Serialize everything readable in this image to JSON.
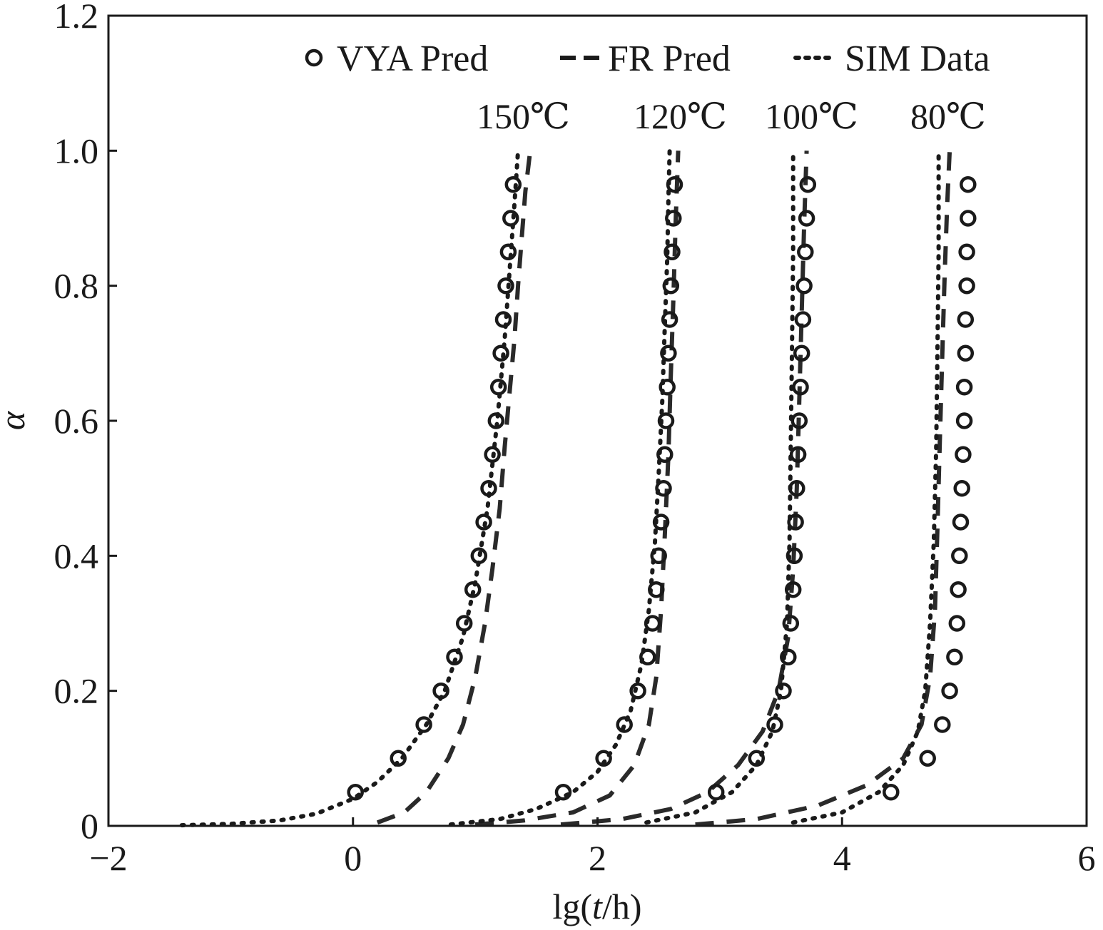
{
  "chart_data": {
    "type": "line",
    "title": "",
    "xlabel_prefix": "lg(",
    "xlabel_italic": "t",
    "xlabel_suffix": "/h)",
    "ylabel": "α",
    "xlim": [
      -2,
      6
    ],
    "ylim": [
      0,
      1.2
    ],
    "xticks": [
      "−2",
      "0",
      "2",
      "4",
      "6"
    ],
    "yticks": [
      "0",
      "0.2",
      "0.4",
      "0.6",
      "0.8",
      "1.0",
      "1.2"
    ],
    "grid": false,
    "legend_position": "top",
    "legend": [
      "VYA Pred",
      "FR Pred",
      "SIM Data"
    ],
    "temperature_labels": [
      "150℃",
      "120℃",
      "100℃",
      "80℃"
    ],
    "alpha_levels": [
      0.05,
      0.1,
      0.15,
      0.2,
      0.25,
      0.3,
      0.35,
      0.4,
      0.45,
      0.5,
      0.55,
      0.6,
      0.65,
      0.7,
      0.75,
      0.8,
      0.85,
      0.9,
      0.95
    ],
    "groups": [
      {
        "temperature": "150℃",
        "vya_x": [
          0.02,
          0.37,
          0.58,
          0.72,
          0.83,
          0.91,
          0.98,
          1.03,
          1.07,
          1.11,
          1.14,
          1.17,
          1.19,
          1.21,
          1.23,
          1.25,
          1.27,
          1.29,
          1.31
        ],
        "fr": {
          "x": [
            0.2,
            0.42,
            0.6,
            0.78,
            0.9,
            1.0,
            1.08,
            1.14,
            1.2,
            1.24,
            1.28,
            1.32,
            1.35,
            1.38,
            1.41,
            1.45
          ],
          "y": [
            0.005,
            0.02,
            0.05,
            0.1,
            0.15,
            0.22,
            0.3,
            0.38,
            0.47,
            0.56,
            0.64,
            0.72,
            0.8,
            0.87,
            0.94,
            1.0
          ]
        },
        "sim": {
          "x": [
            -1.4,
            -1.0,
            -0.6,
            -0.3,
            0.0,
            0.2,
            0.4,
            0.6,
            0.75,
            0.9,
            1.0,
            1.1,
            1.18,
            1.24,
            1.28,
            1.32,
            1.35
          ],
          "y": [
            0.001,
            0.003,
            0.008,
            0.018,
            0.04,
            0.065,
            0.1,
            0.15,
            0.2,
            0.28,
            0.36,
            0.47,
            0.6,
            0.72,
            0.82,
            0.92,
            1.0
          ]
        }
      },
      {
        "temperature": "120℃",
        "vya_x": [
          1.72,
          2.05,
          2.22,
          2.33,
          2.41,
          2.45,
          2.48,
          2.5,
          2.52,
          2.54,
          2.55,
          2.56,
          2.57,
          2.58,
          2.59,
          2.6,
          2.61,
          2.62,
          2.63
        ],
        "fr": {
          "x": [
            1.0,
            1.4,
            1.8,
            2.1,
            2.3,
            2.42,
            2.48,
            2.52,
            2.55,
            2.58,
            2.6,
            2.62,
            2.64,
            2.66
          ],
          "y": [
            0.002,
            0.008,
            0.02,
            0.045,
            0.09,
            0.15,
            0.22,
            0.32,
            0.43,
            0.55,
            0.67,
            0.78,
            0.9,
            1.0
          ]
        },
        "sim": {
          "x": [
            0.8,
            1.2,
            1.5,
            1.8,
            2.0,
            2.15,
            2.27,
            2.36,
            2.42,
            2.47,
            2.5,
            2.53,
            2.55,
            2.57,
            2.58,
            2.59
          ],
          "y": [
            0.002,
            0.01,
            0.025,
            0.05,
            0.08,
            0.12,
            0.17,
            0.24,
            0.32,
            0.42,
            0.52,
            0.63,
            0.74,
            0.84,
            0.93,
            1.0
          ]
        }
      },
      {
        "temperature": "100℃",
        "vya_x": [
          2.97,
          3.3,
          3.45,
          3.52,
          3.56,
          3.58,
          3.6,
          3.61,
          3.62,
          3.63,
          3.64,
          3.65,
          3.66,
          3.67,
          3.68,
          3.69,
          3.7,
          3.71,
          3.72
        ],
        "fr": {
          "x": [
            1.7,
            2.2,
            2.6,
            2.9,
            3.15,
            3.35,
            3.48,
            3.56,
            3.6,
            3.63,
            3.65,
            3.67,
            3.69,
            3.71
          ],
          "y": [
            0.002,
            0.01,
            0.025,
            0.05,
            0.09,
            0.14,
            0.2,
            0.28,
            0.38,
            0.5,
            0.63,
            0.76,
            0.89,
            1.0
          ]
        },
        "sim": {
          "x": [
            2.4,
            2.8,
            3.1,
            3.3,
            3.43,
            3.5,
            3.55,
            3.57,
            3.58,
            3.59,
            3.6,
            3.6
          ],
          "y": [
            0.005,
            0.02,
            0.05,
            0.09,
            0.14,
            0.2,
            0.3,
            0.42,
            0.56,
            0.7,
            0.85,
            1.0
          ]
        }
      },
      {
        "temperature": "80℃",
        "vya_x": [
          4.4,
          4.7,
          4.82,
          4.88,
          4.92,
          4.94,
          4.95,
          4.96,
          4.97,
          4.98,
          4.99,
          5.0,
          5.0,
          5.01,
          5.01,
          5.02,
          5.02,
          5.03,
          5.03
        ],
        "fr": {
          "x": [
            2.8,
            3.3,
            3.8,
            4.2,
            4.5,
            4.65,
            4.72,
            4.76,
            4.78,
            4.8,
            4.82,
            4.84,
            4.86,
            4.88
          ],
          "y": [
            0.002,
            0.01,
            0.03,
            0.06,
            0.1,
            0.15,
            0.22,
            0.32,
            0.44,
            0.57,
            0.7,
            0.82,
            0.92,
            1.0
          ]
        },
        "sim": {
          "x": [
            3.6,
            4.0,
            4.3,
            4.5,
            4.62,
            4.68,
            4.72,
            4.75,
            4.77,
            4.78,
            4.79,
            4.79
          ],
          "y": [
            0.005,
            0.02,
            0.05,
            0.09,
            0.14,
            0.2,
            0.3,
            0.42,
            0.56,
            0.7,
            0.85,
            1.0
          ]
        }
      }
    ]
  }
}
